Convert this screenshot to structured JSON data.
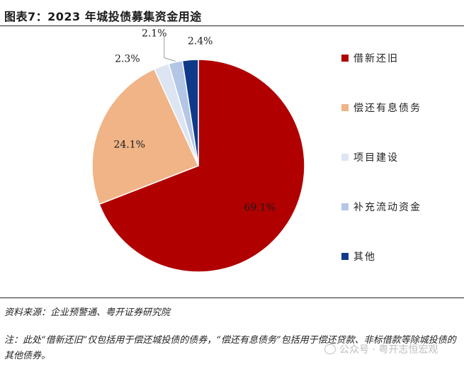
{
  "title": "图表7：2023 年城投债募集资金用途",
  "chart_data": {
    "type": "pie",
    "categories": [
      "借新还旧",
      "偿还有息债务",
      "项目建设",
      "补充流动资金",
      "其他"
    ],
    "values": [
      69.1,
      24.1,
      2.3,
      2.1,
      2.4
    ],
    "value_labels": [
      "69.1%",
      "24.1%",
      "2.3%",
      "2.1%",
      "2.4%"
    ],
    "colors": [
      "#b00000",
      "#f0b487",
      "#dde5f2",
      "#b3c6e6",
      "#0f3a8a"
    ],
    "legend_position": "right",
    "start": "top, clockwise"
  },
  "source": "资料来源：企业预警通、粤开证券研究院",
  "note": "注：此处“借新还旧”仅包括用于偿还城投债的债券，“偿还有息债务”包括用于偿还贷款、非标借款等除城投债的其他债券。",
  "watermark": "公众号 · 粤开志恒宏观"
}
